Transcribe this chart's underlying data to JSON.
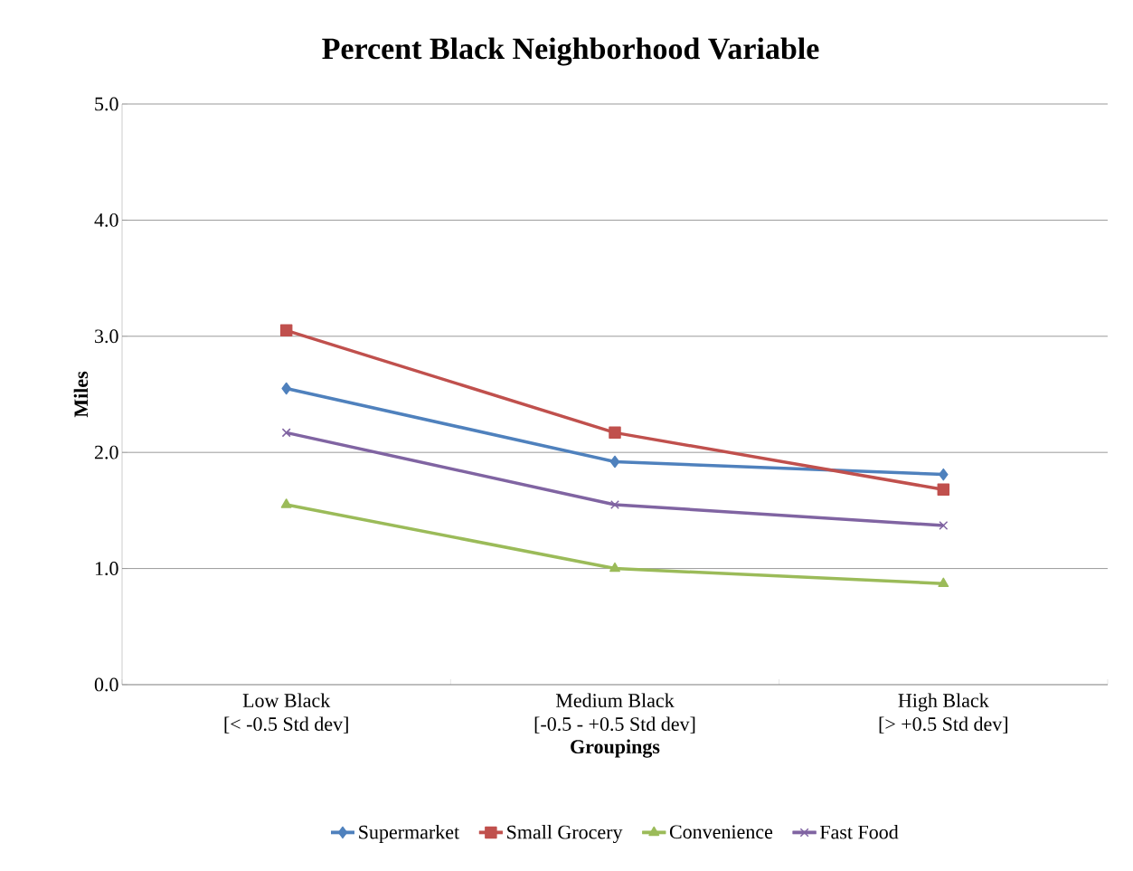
{
  "chart_data": {
    "type": "line",
    "title": "Percent Black Neighborhood Variable",
    "xlabel": "Groupings",
    "ylabel": "Miles",
    "categories": [
      "Low Black\n[< -0.5 Std dev]",
      "Medium Black\n[-0.5 - +0.5 Std dev]",
      "High Black\n[> +0.5 Std dev]"
    ],
    "series": [
      {
        "name": "Supermarket",
        "color": "#4f81bd",
        "marker": "diamond",
        "values": [
          2.55,
          1.92,
          1.81
        ]
      },
      {
        "name": "Small Grocery",
        "color": "#c0504d",
        "marker": "square",
        "values": [
          3.05,
          2.17,
          1.68
        ]
      },
      {
        "name": "Convenience",
        "color": "#9bbb59",
        "marker": "triangle",
        "values": [
          1.55,
          1.0,
          0.87
        ]
      },
      {
        "name": "Fast Food",
        "color": "#8064a2",
        "marker": "cross",
        "values": [
          2.17,
          1.55,
          1.37
        ]
      }
    ],
    "ylim": [
      0,
      5
    ],
    "yticks": [
      {
        "value": 0,
        "label": "0.0"
      },
      {
        "value": 1,
        "label": "1.0"
      },
      {
        "value": 2,
        "label": "2.0"
      },
      {
        "value": 3,
        "label": "3.0"
      },
      {
        "value": 4,
        "label": "4.0"
      },
      {
        "value": 5,
        "label": "5.0"
      }
    ],
    "grid": "y",
    "legend": "bottom",
    "line_style": "solid"
  }
}
